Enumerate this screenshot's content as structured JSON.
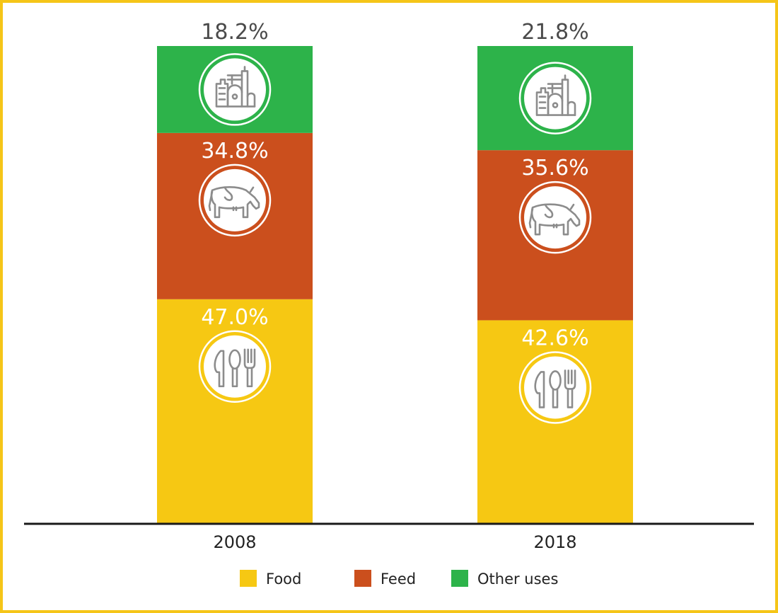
{
  "chart_data": {
    "type": "bar",
    "stacked": true,
    "categories": [
      "2008",
      "2018"
    ],
    "series": [
      {
        "name": "Food",
        "values": [
          47.0,
          42.6
        ],
        "labels": [
          "47.0%",
          "42.6%"
        ],
        "color": "#f6c813",
        "icon": "cutlery-icon"
      },
      {
        "name": "Feed",
        "values": [
          34.8,
          35.6
        ],
        "labels": [
          "34.8%",
          "35.6%"
        ],
        "color": "#cb4f1d",
        "icon": "cow-icon"
      },
      {
        "name": "Other uses",
        "values": [
          18.2,
          21.8
        ],
        "labels": [
          "18.2%",
          "21.8%"
        ],
        "color": "#2db34a",
        "icon": "factory-icon"
      }
    ],
    "ylim": [
      0,
      100
    ],
    "grid": false,
    "legend_position": "bottom",
    "frame_color": "#f5c518",
    "axis_color": "#1a1a1a",
    "outside_label_color": "#4a4a4a"
  }
}
